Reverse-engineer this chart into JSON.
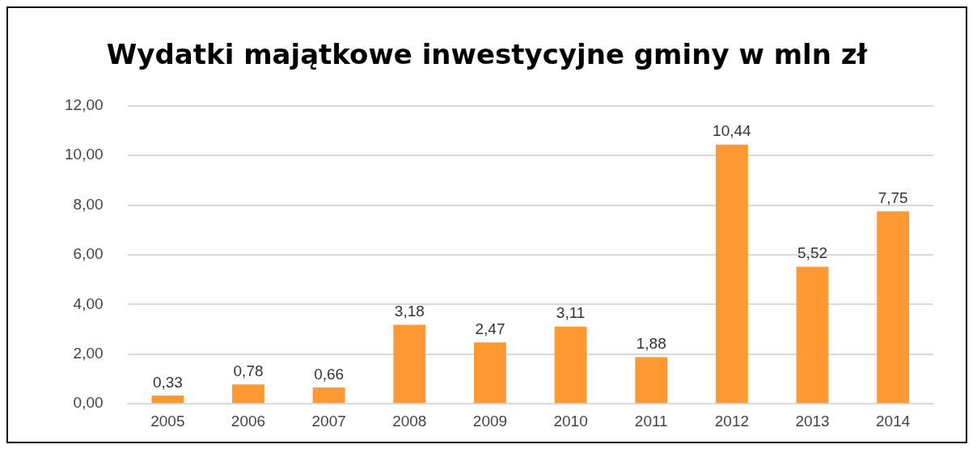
{
  "chart_data": {
    "type": "bar",
    "title": "Wydatki majątkowe inwestycyjne gminy w mln zł",
    "categories": [
      "2005",
      "2006",
      "2007",
      "2008",
      "2009",
      "2010",
      "2011",
      "2012",
      "2013",
      "2014"
    ],
    "values": [
      0.33,
      0.78,
      0.66,
      3.18,
      2.47,
      3.11,
      1.88,
      10.44,
      5.52,
      7.75
    ],
    "value_labels": [
      "0,33",
      "0,78",
      "0,66",
      "3,18",
      "2,47",
      "3,11",
      "1,88",
      "10,44",
      "5,52",
      "7,75"
    ],
    "color": "#ff9933",
    "ylim": [
      0,
      12
    ],
    "yticks": [
      {
        "value": 0,
        "label": "0,00"
      },
      {
        "value": 2,
        "label": "2,00"
      },
      {
        "value": 4,
        "label": "4,00"
      },
      {
        "value": 6,
        "label": "6,00"
      },
      {
        "value": 8,
        "label": "8,00"
      },
      {
        "value": 10,
        "label": "10,00"
      },
      {
        "value": 12,
        "label": "12,00"
      }
    ],
    "grid": "y",
    "legend": false
  }
}
